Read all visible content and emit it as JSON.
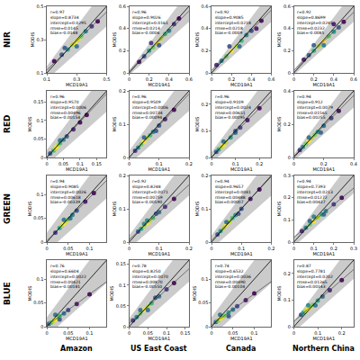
{
  "rows": [
    "NIR",
    "RED",
    "GREEN",
    "BLUE"
  ],
  "columns": [
    "Amazon",
    "US East Coast",
    "Canada",
    "Northern China"
  ],
  "color": "Viridis",
  "envelope": {
    "absolute": 0.02,
    "relative": 0.2
  },
  "chart_data": [
    {
      "type": "scatter",
      "marker": "circle",
      "xlabel": "MCD19A1",
      "ylabel": "MODIS",
      "xlim": [
        0.1,
        0.5
      ],
      "ylim": [
        0.1,
        0.5
      ],
      "xticks": [
        0.1,
        0.3,
        0.5
      ],
      "yticks": [
        0.1,
        0.3,
        0.5
      ],
      "x": [
        0.2,
        0.24,
        0.27,
        0.29,
        0.31,
        0.33,
        0.36,
        0.22,
        0.4,
        0.15,
        0.44,
        0.3
      ],
      "y": [
        0.21,
        0.24,
        0.27,
        0.28,
        0.3,
        0.32,
        0.35,
        0.25,
        0.38,
        0.17,
        0.41,
        0.26
      ],
      "density": [
        0.3,
        0.6,
        0.9,
        1,
        0.95,
        0.8,
        0.5,
        0.3,
        0.2,
        0.05,
        0.05,
        0.4
      ],
      "fit": {
        "slope": 0.8734,
        "intercept": 0.0295
      },
      "stats": [
        "r=0.97",
        "slope=0.8734",
        "intercept=0.0295",
        "rmse=0.0145",
        "bias=-0.0148"
      ]
    },
    {
      "type": "scatter",
      "marker": "circle",
      "xlabel": "MCD19A1",
      "ylabel": "MODIS",
      "xlim": [
        0,
        0.6
      ],
      "ylim": [
        0,
        0.6
      ],
      "xticks": [
        0,
        0.2,
        0.4,
        0.6
      ],
      "yticks": [
        0,
        0.2,
        0.4,
        0.6
      ],
      "x": [
        0.1,
        0.15,
        0.2,
        0.24,
        0.28,
        0.32,
        0.36,
        0.4,
        0.45,
        0.5,
        0.22,
        0.3
      ],
      "y": [
        0.1,
        0.15,
        0.2,
        0.23,
        0.27,
        0.31,
        0.35,
        0.38,
        0.44,
        0.49,
        0.27,
        0.25
      ],
      "density": [
        0.1,
        0.3,
        0.6,
        0.8,
        1,
        0.9,
        0.7,
        0.5,
        0.2,
        0.05,
        0.2,
        0.3
      ],
      "fit": {
        "slope": 0.9026,
        "intercept": 0.0161
      },
      "stats": [
        "r=0.96",
        "slope=0.9026",
        "intercept=0.0161",
        "rmse=0.0214",
        "bias=-0.0006"
      ]
    },
    {
      "type": "scatter",
      "marker": "circle",
      "xlabel": "MCD19A1",
      "ylabel": "MODIS",
      "xlim": [
        0,
        0.6
      ],
      "ylim": [
        0,
        0.6
      ],
      "xticks": [
        0,
        0.2,
        0.4,
        0.6
      ],
      "yticks": [
        0,
        0.2,
        0.4,
        0.6
      ],
      "x": [
        0.05,
        0.1,
        0.15,
        0.2,
        0.25,
        0.3,
        0.35,
        0.4,
        0.5,
        0.18,
        0.28,
        0.45
      ],
      "y": [
        0.07,
        0.11,
        0.15,
        0.2,
        0.24,
        0.29,
        0.34,
        0.38,
        0.47,
        0.24,
        0.24,
        0.4
      ],
      "density": [
        0.2,
        0.5,
        0.8,
        1,
        0.9,
        0.7,
        0.5,
        0.3,
        0.1,
        0.3,
        0.4,
        0.15
      ],
      "fit": {
        "slope": 0.9085,
        "intercept": 0.0218
      },
      "stats": [
        "r=0.92",
        "slope=0.9085",
        "intercept=0.0218",
        "rmse=0.0218",
        "bias=-0.0009"
      ]
    },
    {
      "type": "scatter",
      "marker": "circle",
      "xlabel": "MCD19A1",
      "ylabel": "MODIS",
      "xlim": [
        0,
        0.6
      ],
      "ylim": [
        0,
        0.6
      ],
      "xticks": [
        0,
        0.2,
        0.4,
        0.6
      ],
      "yticks": [
        0,
        0.2,
        0.4,
        0.6
      ],
      "x": [
        0.1,
        0.15,
        0.2,
        0.25,
        0.3,
        0.35,
        0.4,
        0.45,
        0.5,
        0.2,
        0.3,
        0.4
      ],
      "y": [
        0.12,
        0.16,
        0.2,
        0.24,
        0.29,
        0.33,
        0.37,
        0.41,
        0.46,
        0.25,
        0.25,
        0.44
      ],
      "density": [
        0.2,
        0.4,
        0.7,
        0.9,
        1,
        0.8,
        0.6,
        0.4,
        0.15,
        0.4,
        0.5,
        0.2
      ],
      "fit": {
        "slope": 0.8699,
        "intercept": 0.0245
      },
      "stats": [
        "r=0.92",
        "slope=0.8699",
        "intercept=0.0245",
        "rmse=0.0232",
        "bias=-0.0085"
      ]
    },
    {
      "type": "scatter",
      "marker": "circle",
      "xlabel": "MCD19A1",
      "ylabel": "MODIS",
      "xlim": [
        0,
        0.18
      ],
      "ylim": [
        0,
        0.18
      ],
      "xticks": [
        0,
        0.05,
        0.1,
        0.15
      ],
      "yticks": [
        0,
        0.05,
        0.1,
        0.15
      ],
      "x": [
        0.01,
        0.02,
        0.025,
        0.03,
        0.035,
        0.04,
        0.05,
        0.06,
        0.08,
        0.1,
        0.12,
        0.04
      ],
      "y": [
        0.011,
        0.019,
        0.024,
        0.029,
        0.034,
        0.039,
        0.048,
        0.057,
        0.076,
        0.095,
        0.115,
        0.046
      ],
      "density": [
        0.3,
        0.7,
        0.9,
        1,
        0.9,
        0.7,
        0.5,
        0.3,
        0.15,
        0.05,
        0.05,
        0.4
      ],
      "fit": {
        "slope": 0.957,
        "intercept": 0.0006
      },
      "stats": [
        "r=0.96",
        "slope=0.9570",
        "intercept=0.0006",
        "rmse=0.00496",
        "bias=-0.00154"
      ]
    },
    {
      "type": "scatter",
      "marker": "circle",
      "xlabel": "MCD19A1",
      "ylabel": "MODIS",
      "xlim": [
        0,
        0.2
      ],
      "ylim": [
        0,
        0.2
      ],
      "xticks": [
        0,
        0.1,
        0.2
      ],
      "yticks": [
        0,
        0.1,
        0.2
      ],
      "x": [
        0.02,
        0.03,
        0.04,
        0.05,
        0.06,
        0.07,
        0.08,
        0.1,
        0.12,
        0.15,
        0.05,
        0.09
      ],
      "y": [
        0.02,
        0.03,
        0.039,
        0.048,
        0.058,
        0.067,
        0.077,
        0.096,
        0.115,
        0.143,
        0.06,
        0.08
      ],
      "density": [
        0.2,
        0.5,
        0.8,
        1,
        0.9,
        0.7,
        0.5,
        0.3,
        0.15,
        0.05,
        0.35,
        0.3
      ],
      "fit": {
        "slope": 0.9509,
        "intercept": 0.0006
      },
      "stats": [
        "r=0.96",
        "slope=0.9509",
        "intercept=0.0006",
        "rmse=0.00734",
        "bias=-0.00094"
      ]
    },
    {
      "type": "scatter",
      "marker": "circle",
      "xlabel": "MCD19A1",
      "ylabel": "MODIS",
      "xlim": [
        0,
        0.25
      ],
      "ylim": [
        0,
        0.25
      ],
      "xticks": [
        0,
        0.1,
        0.2
      ],
      "yticks": [
        0,
        0.1,
        0.2
      ],
      "x": [
        0.02,
        0.03,
        0.04,
        0.05,
        0.06,
        0.08,
        0.1,
        0.12,
        0.15,
        0.2,
        0.05,
        0.1
      ],
      "y": [
        0.021,
        0.03,
        0.039,
        0.048,
        0.057,
        0.075,
        0.093,
        0.112,
        0.14,
        0.185,
        0.06,
        0.1
      ],
      "density": [
        0.3,
        0.6,
        0.9,
        1,
        0.9,
        0.6,
        0.4,
        0.25,
        0.1,
        0.05,
        0.4,
        0.3
      ],
      "fit": {
        "slope": 0.9109,
        "intercept": 0.0024
      },
      "stats": [
        "r=0.96",
        "slope=0.9109",
        "intercept=0.0024",
        "rmse=0.00651",
        "bias=-0.00095"
      ]
    },
    {
      "type": "scatter",
      "marker": "circle",
      "xlabel": "MCD19A1",
      "ylabel": "MODIS",
      "xlim": [
        0,
        0.4
      ],
      "ylim": [
        0,
        0.4
      ],
      "xticks": [
        0,
        0.2,
        0.4
      ],
      "yticks": [
        0,
        0.2,
        0.4
      ],
      "x": [
        0.04,
        0.06,
        0.08,
        0.1,
        0.12,
        0.14,
        0.16,
        0.2,
        0.25,
        0.3,
        0.1,
        0.18
      ],
      "y": [
        0.045,
        0.063,
        0.081,
        0.1,
        0.118,
        0.136,
        0.154,
        0.19,
        0.236,
        0.28,
        0.12,
        0.15
      ],
      "density": [
        0.2,
        0.5,
        0.8,
        1,
        0.9,
        0.8,
        0.6,
        0.4,
        0.2,
        0.05,
        0.4,
        0.35
      ],
      "fit": {
        "slope": 0.912,
        "intercept": 0.0079
      },
      "stats": [
        "r=0.94",
        "slope=0.912",
        "intercept=0.0079",
        "rmse=0.01565",
        "bias=0.00255"
      ]
    },
    {
      "type": "scatter",
      "marker": "circle",
      "xlabel": "MCD19A1",
      "ylabel": "MODIS",
      "xlim": [
        0,
        0.14
      ],
      "ylim": [
        0,
        0.14
      ],
      "xticks": [
        0,
        0.05,
        0.1
      ],
      "yticks": [
        0,
        0.05,
        0.1
      ],
      "x": [
        0.02,
        0.03,
        0.035,
        0.04,
        0.045,
        0.05,
        0.06,
        0.07,
        0.09,
        0.11,
        0.04,
        0.055
      ],
      "y": [
        0.02,
        0.03,
        0.034,
        0.039,
        0.043,
        0.048,
        0.057,
        0.066,
        0.085,
        0.103,
        0.047,
        0.05
      ],
      "density": [
        0.2,
        0.6,
        0.9,
        1,
        0.95,
        0.8,
        0.5,
        0.3,
        0.1,
        0.05,
        0.4,
        0.4
      ],
      "fit": {
        "slope": 0.9085,
        "intercept": 0.0026
      },
      "stats": [
        "r=0.94",
        "slope=0.9085",
        "intercept=0.0026",
        "rmse=0.00618",
        "bias=-0.00339"
      ]
    },
    {
      "type": "scatter",
      "marker": "circle",
      "xlabel": "MCD19A1",
      "ylabel": "MODIS",
      "xlim": [
        0,
        0.2
      ],
      "ylim": [
        0,
        0.2
      ],
      "xticks": [
        0,
        0.1,
        0.2
      ],
      "yticks": [
        0,
        0.1,
        0.2
      ],
      "x": [
        0.03,
        0.04,
        0.05,
        0.06,
        0.07,
        0.08,
        0.1,
        0.12,
        0.15,
        0.06,
        0.09,
        0.05
      ],
      "y": [
        0.032,
        0.04,
        0.048,
        0.056,
        0.065,
        0.073,
        0.09,
        0.106,
        0.13,
        0.065,
        0.085,
        0.055
      ],
      "density": [
        0.3,
        0.6,
        0.9,
        1,
        0.9,
        0.7,
        0.4,
        0.2,
        0.05,
        0.5,
        0.3,
        0.5
      ],
      "fit": {
        "slope": 0.8248,
        "intercept": 0.0071
      },
      "stats": [
        "r=0.92",
        "slope=0.8248",
        "intercept=0.0071",
        "rmse=0.00759",
        "bias=-0.00590"
      ]
    },
    {
      "type": "scatter",
      "marker": "circle",
      "xlabel": "MCD19A1",
      "ylabel": "MODIS",
      "xlim": [
        0,
        0.2
      ],
      "ylim": [
        0,
        0.2
      ],
      "xticks": [
        0,
        0.1,
        0.2
      ],
      "yticks": [
        0,
        0.1,
        0.2
      ],
      "x": [
        0.02,
        0.03,
        0.04,
        0.05,
        0.06,
        0.07,
        0.08,
        0.1,
        0.13,
        0.16,
        0.05,
        0.09
      ],
      "y": [
        0.023,
        0.033,
        0.042,
        0.052,
        0.062,
        0.072,
        0.081,
        0.1,
        0.13,
        0.158,
        0.06,
        0.085
      ],
      "density": [
        0.3,
        0.6,
        0.9,
        1,
        0.9,
        0.7,
        0.5,
        0.3,
        0.1,
        0.05,
        0.4,
        0.3
      ],
      "fit": {
        "slope": 0.9657,
        "intercept": 0.0041
      },
      "stats": [
        "r=0.94",
        "slope=0.9657",
        "intercept=0.0041",
        "rmse=0.00488",
        "bias=0.00007"
      ]
    },
    {
      "type": "scatter",
      "marker": "circle",
      "xlabel": "MCD19A1",
      "ylabel": "MODIS",
      "xlim": [
        0,
        0.3
      ],
      "ylim": [
        0,
        0.3
      ],
      "xticks": [
        0,
        0.1,
        0.2,
        0.3
      ],
      "yticks": [
        0,
        0.1,
        0.2,
        0.3
      ],
      "x": [
        0.04,
        0.06,
        0.08,
        0.1,
        0.12,
        0.14,
        0.16,
        0.2,
        0.24,
        0.1,
        0.15,
        0.08
      ],
      "y": [
        0.05,
        0.065,
        0.08,
        0.095,
        0.11,
        0.125,
        0.14,
        0.17,
        0.2,
        0.115,
        0.125,
        0.095
      ],
      "density": [
        0.2,
        0.5,
        0.8,
        1,
        0.9,
        0.7,
        0.5,
        0.25,
        0.1,
        0.5,
        0.4,
        0.4
      ],
      "fit": {
        "slope": 0.7393,
        "intercept": 0.0213
      },
      "stats": [
        "r=0.94",
        "slope=0.7393",
        "intercept=0.0213",
        "rmse=0.01272",
        "bias=0.00437"
      ]
    },
    {
      "type": "scatter",
      "marker": "circle",
      "xlabel": "MCD19A1",
      "ylabel": "MODIS",
      "xlim": [
        0,
        0.14
      ],
      "ylim": [
        0,
        0.14
      ],
      "xticks": [
        0,
        0.05,
        0.1
      ],
      "yticks": [
        0,
        0.05,
        0.1
      ],
      "x": [
        0.005,
        0.01,
        0.015,
        0.02,
        0.025,
        0.03,
        0.04,
        0.05,
        0.07,
        0.1,
        0.02,
        0.03
      ],
      "y": [
        0.006,
        0.009,
        0.012,
        0.015,
        0.019,
        0.022,
        0.028,
        0.035,
        0.048,
        0.068,
        0.025,
        0.015
      ],
      "density": [
        0.3,
        0.7,
        0.9,
        1,
        0.9,
        0.7,
        0.4,
        0.25,
        0.1,
        0.05,
        0.4,
        0.3
      ],
      "fit": {
        "slope": 0.6604,
        "intercept": 0.0022
      },
      "stats": [
        "r=0.76",
        "slope=0.6604",
        "intercept=0.0022",
        "rmse=0.00421",
        "bias=-0.00181"
      ]
    },
    {
      "type": "scatter",
      "marker": "circle",
      "xlabel": "MCD19A1",
      "ylabel": "MODIS",
      "xlim": [
        0,
        0.16
      ],
      "ylim": [
        0,
        0.16
      ],
      "xticks": [
        0,
        0.05,
        0.1,
        0.15
      ],
      "yticks": [
        0,
        0.05,
        0.1,
        0.15
      ],
      "x": [
        0.01,
        0.02,
        0.03,
        0.04,
        0.05,
        0.06,
        0.08,
        0.1,
        0.12,
        0.03,
        0.05,
        0.07
      ],
      "y": [
        0.015,
        0.023,
        0.032,
        0.04,
        0.048,
        0.056,
        0.073,
        0.09,
        0.105,
        0.04,
        0.04,
        0.07
      ],
      "density": [
        0.2,
        0.5,
        0.8,
        1,
        0.9,
        0.7,
        0.4,
        0.2,
        0.05,
        0.4,
        0.4,
        0.3
      ],
      "fit": {
        "slope": 0.825,
        "intercept": 0.007
      },
      "stats": [
        "r=0.78",
        "slope=0.8250",
        "intercept=0.0070",
        "rmse=0.00870",
        "bias=-0.00550"
      ]
    },
    {
      "type": "scatter",
      "marker": "circle",
      "xlabel": "MCD19A1",
      "ylabel": "MODIS",
      "xlim": [
        0,
        0.14
      ],
      "ylim": [
        0,
        0.14
      ],
      "xticks": [
        0,
        0.05,
        0.1
      ],
      "yticks": [
        0,
        0.05,
        0.1
      ],
      "x": [
        0.01,
        0.015,
        0.02,
        0.025,
        0.03,
        0.04,
        0.05,
        0.06,
        0.08,
        0.1,
        0.02,
        0.04
      ],
      "y": [
        0.01,
        0.013,
        0.017,
        0.02,
        0.023,
        0.03,
        0.036,
        0.043,
        0.056,
        0.07,
        0.025,
        0.022
      ],
      "density": [
        0.4,
        0.8,
        1,
        0.95,
        0.8,
        0.6,
        0.4,
        0.25,
        0.1,
        0.05,
        0.4,
        0.3
      ],
      "fit": {
        "slope": 0.6532,
        "intercept": 0.0036
      },
      "stats": [
        "r=0.74",
        "slope=0.6532",
        "intercept=0.0036",
        "rmse=0.00490",
        "bias=-0.00104"
      ]
    },
    {
      "type": "scatter",
      "marker": "circle",
      "xlabel": "MCD19A1",
      "ylabel": "MODIS",
      "xlim": [
        0,
        0.25
      ],
      "ylim": [
        0,
        0.25
      ],
      "xticks": [
        0,
        0.1,
        0.2
      ],
      "yticks": [
        0,
        0.1,
        0.2
      ],
      "x": [
        0.03,
        0.04,
        0.05,
        0.06,
        0.07,
        0.08,
        0.1,
        0.12,
        0.15,
        0.2,
        0.06,
        0.09
      ],
      "y": [
        0.045,
        0.052,
        0.06,
        0.067,
        0.075,
        0.083,
        0.098,
        0.113,
        0.137,
        0.175,
        0.08,
        0.08
      ],
      "density": [
        0.3,
        0.6,
        0.9,
        1,
        0.95,
        0.8,
        0.6,
        0.4,
        0.15,
        0.05,
        0.5,
        0.4
      ],
      "fit": {
        "slope": 0.7781,
        "intercept": 0.0202
      },
      "stats": [
        "r=0.87",
        "slope=0.7781",
        "intercept=0.0202",
        "rmse=0.01365",
        "bias=0.00143"
      ]
    }
  ]
}
